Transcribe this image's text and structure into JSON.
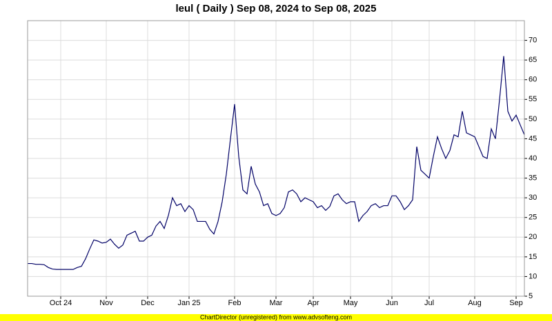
{
  "chart_data": {
    "type": "line",
    "title": "leul ( Daily ) Sep 08, 2024 to Sep 08, 2025",
    "footer": "ChartDirector (unregistered) from www.advsofteng.com",
    "categories": [
      null,
      null,
      null,
      null,
      null,
      null,
      null,
      null,
      "Oct 24",
      null,
      null,
      null,
      null,
      null,
      null,
      null,
      null,
      null,
      null,
      "Nov",
      null,
      null,
      null,
      null,
      null,
      null,
      null,
      null,
      null,
      "Dec",
      null,
      null,
      null,
      null,
      null,
      null,
      null,
      null,
      null,
      "Jan 25",
      null,
      null,
      null,
      null,
      null,
      null,
      null,
      null,
      null,
      null,
      "Feb",
      null,
      null,
      null,
      null,
      null,
      null,
      null,
      null,
      null,
      "Mar",
      null,
      null,
      null,
      null,
      null,
      null,
      null,
      null,
      "Apr",
      null,
      null,
      null,
      null,
      null,
      null,
      null,
      null,
      "May",
      null,
      null,
      null,
      null,
      null,
      null,
      null,
      null,
      null,
      "Jun",
      null,
      null,
      null,
      null,
      null,
      null,
      null,
      null,
      "Jul",
      null,
      null,
      null,
      null,
      null,
      null,
      null,
      null,
      null,
      null,
      "Aug",
      null,
      null,
      null,
      null,
      null,
      null,
      null,
      null,
      null,
      "Sep",
      null,
      null
    ],
    "values": [
      13.3,
      13.3,
      13.1,
      13.1,
      13,
      12.3,
      11.9,
      11.8,
      11.8,
      11.8,
      11.8,
      11.8,
      12.3,
      12.6,
      14.5,
      17,
      19.3,
      19,
      18.5,
      18.7,
      19.5,
      18.2,
      17.2,
      18,
      20.5,
      21,
      21.5,
      19,
      19,
      20,
      20.5,
      22.8,
      24,
      22.2,
      25.5,
      30,
      28,
      28.5,
      26.5,
      28,
      27,
      24,
      24,
      24,
      22,
      20.8,
      24,
      29,
      36,
      45,
      53.8,
      40.5,
      32,
      31,
      38,
      33.5,
      31.5,
      28,
      28.5,
      26,
      25.5,
      26,
      27.5,
      31.5,
      32,
      31,
      29,
      30,
      29.5,
      29,
      27.5,
      28,
      26.8,
      27.8,
      30.5,
      31,
      29.5,
      28.5,
      29,
      29,
      24,
      25.5,
      26.5,
      28,
      28.5,
      27.5,
      28,
      28,
      30.5,
      30.5,
      29,
      27,
      28,
      29.5,
      43,
      37,
      36,
      35,
      40.5,
      45.5,
      42.5,
      40,
      42,
      46,
      45.5,
      52,
      46.5,
      46,
      45.5,
      43,
      40.5,
      40,
      47.5,
      45,
      55,
      66,
      52,
      49.5,
      51,
      48.5,
      46
    ],
    "color": "#000066",
    "ylim": [
      5,
      75
    ],
    "yticks": [
      5,
      10,
      15,
      20,
      25,
      30,
      35,
      40,
      45,
      50,
      55,
      60,
      65,
      70
    ],
    "grid": true
  }
}
